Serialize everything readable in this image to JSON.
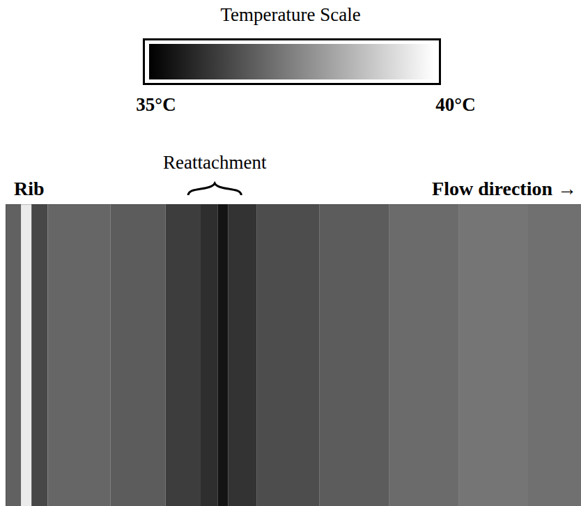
{
  "chart_data": {
    "type": "heatmap",
    "title": "Temperature Scale",
    "annotations": {
      "rib": "Rib",
      "reattachment": "Reattachment",
      "flow": "Flow direction →"
    },
    "x_edges": [
      0,
      2.7,
      4.5,
      7.3,
      18.2,
      27.8,
      33.9,
      36.9,
      38.7,
      43.6,
      54.5,
      66.6,
      78.7,
      90.8,
      100
    ],
    "values": [
      36.9,
      39.6,
      36.4,
      37.0,
      36.8,
      36.2,
      35.9,
      35.4,
      36.0,
      36.5,
      36.8,
      37.1,
      37.3,
      37.2
    ],
    "xlim": [
      0,
      100
    ],
    "tick_labels": false,
    "colorbar": {
      "range": [
        35,
        40
      ],
      "colors": [
        "#000000",
        "#ffffff"
      ],
      "ticks": [
        {
          "value": 35,
          "label": "35°C"
        },
        {
          "value": 40,
          "label": "40°C"
        }
      ]
    }
  }
}
